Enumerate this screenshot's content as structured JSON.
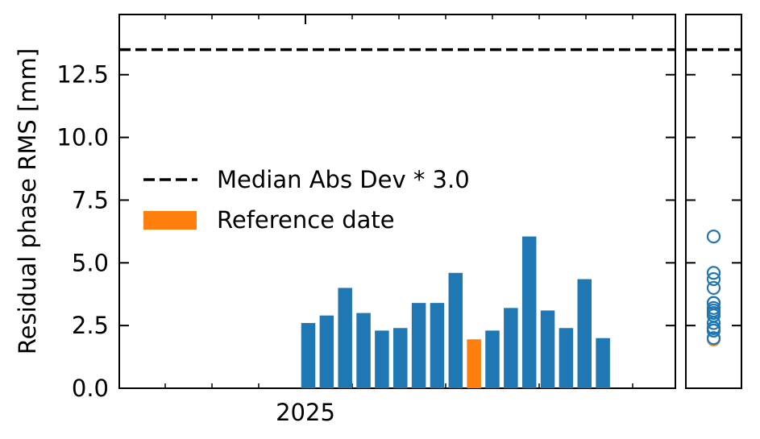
{
  "chart_data": {
    "type": "bar",
    "ylabel": "Residual phase RMS [mm]",
    "ylim": [
      0,
      14.9
    ],
    "y_ticks": [
      "0.0",
      "2.5",
      "5.0",
      "7.5",
      "10.0",
      "12.5"
    ],
    "x_ticks": [
      "2025"
    ],
    "threshold": {
      "name": "Median Abs Dev * 3.0",
      "value": 13.5
    },
    "legend": {
      "placement": "center-left",
      "entries": [
        {
          "label": "Median Abs Dev * 3.0",
          "style": "dashed-line"
        },
        {
          "label": "Reference date",
          "style": "patch",
          "color": "#ff7f0e"
        }
      ]
    },
    "colors": {
      "bar": "#1f77b4",
      "reference": "#ff7f0e",
      "threshold": "#000000"
    },
    "bars": [
      {
        "value": 2.6,
        "reference": false
      },
      {
        "value": 2.9,
        "reference": false
      },
      {
        "value": 4.0,
        "reference": false
      },
      {
        "value": 3.0,
        "reference": false
      },
      {
        "value": 2.3,
        "reference": false
      },
      {
        "value": 2.4,
        "reference": false
      },
      {
        "value": 3.4,
        "reference": false
      },
      {
        "value": 3.4,
        "reference": false
      },
      {
        "value": 4.6,
        "reference": false
      },
      {
        "value": 1.95,
        "reference": true
      },
      {
        "value": 2.3,
        "reference": false
      },
      {
        "value": 3.2,
        "reference": false
      },
      {
        "value": 6.05,
        "reference": false
      },
      {
        "value": 3.1,
        "reference": false
      },
      {
        "value": 2.4,
        "reference": false
      },
      {
        "value": 4.35,
        "reference": false
      },
      {
        "value": 2.0,
        "reference": false
      }
    ]
  }
}
